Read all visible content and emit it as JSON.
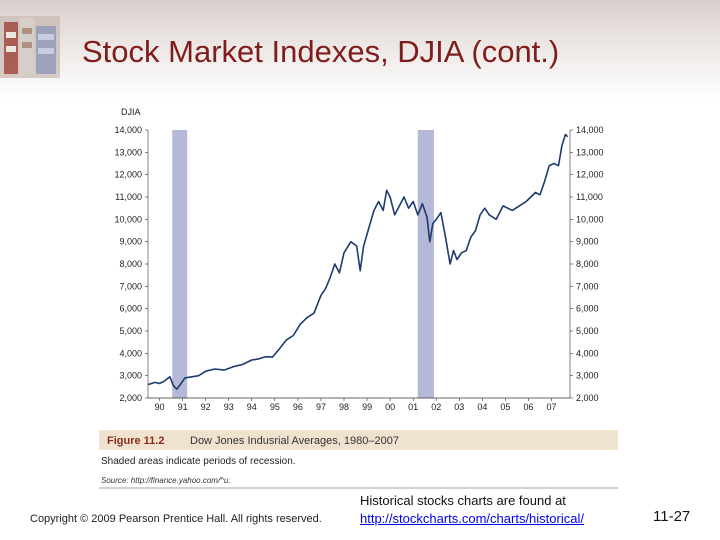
{
  "slide": {
    "title": "Stock Market Indexes, DJIA (cont.)",
    "copyright": "Copyright © 2009 Pearson Prentice Hall. All rights reserved.",
    "historical_text": "Historical stocks charts are found at",
    "historical_link": "http://stockcharts.com/charts/historical/",
    "page_number": "11-27"
  },
  "colors": {
    "title": "#7f1d1d",
    "line": "#1f3a6e",
    "recession": "#b3b9d6",
    "caption_band": "#efe3cf"
  },
  "chart_data": {
    "type": "line",
    "ylabel": "DJIA",
    "ylim": [
      2000,
      14000
    ],
    "yticks": [
      2000,
      3000,
      4000,
      5000,
      6000,
      7000,
      8000,
      9000,
      10000,
      11000,
      12000,
      13000,
      14000
    ],
    "ytick_labels": [
      "2,000",
      "3,000",
      "4,000",
      "5,000",
      "6,000",
      "7,000",
      "8,000",
      "9,000",
      "10,000",
      "11,000",
      "12,000",
      "13,000",
      "14,000"
    ],
    "xlim": [
      1989.5,
      2007.8
    ],
    "xticks": [
      1990,
      1991,
      1992,
      1993,
      1994,
      1995,
      1996,
      1997,
      1998,
      1999,
      2000,
      2001,
      2002,
      2003,
      2004,
      2005,
      2006,
      2007
    ],
    "xtick_labels": [
      "90",
      "91",
      "92",
      "93",
      "94",
      "95",
      "96",
      "97",
      "98",
      "99",
      "00",
      "01",
      "02",
      "03",
      "04",
      "05",
      "06",
      "07"
    ],
    "recessions": [
      {
        "start": 1990.55,
        "end": 1991.2
      },
      {
        "start": 2001.2,
        "end": 2001.9
      }
    ],
    "series": [
      {
        "name": "Dow Jones Industrial Average",
        "x": [
          1989.5,
          1989.8,
          1990.0,
          1990.2,
          1990.45,
          1990.6,
          1990.75,
          1990.9,
          1991.1,
          1991.4,
          1991.7,
          1992.0,
          1992.4,
          1992.8,
          1993.2,
          1993.6,
          1994.0,
          1994.3,
          1994.6,
          1994.9,
          1995.2,
          1995.5,
          1995.8,
          1996.1,
          1996.4,
          1996.7,
          1997.0,
          1997.2,
          1997.4,
          1997.6,
          1997.8,
          1998.0,
          1998.3,
          1998.55,
          1998.7,
          1998.85,
          1999.1,
          1999.3,
          1999.5,
          1999.7,
          1999.85,
          2000.0,
          2000.2,
          2000.4,
          2000.6,
          2000.8,
          2001.0,
          2001.2,
          2001.4,
          2001.6,
          2001.72,
          2001.85,
          2002.0,
          2002.2,
          2002.4,
          2002.6,
          2002.75,
          2002.9,
          2003.1,
          2003.3,
          2003.5,
          2003.7,
          2003.9,
          2004.1,
          2004.3,
          2004.6,
          2004.9,
          2005.1,
          2005.3,
          2005.6,
          2005.9,
          2006.1,
          2006.3,
          2006.5,
          2006.7,
          2006.9,
          2007.1,
          2007.3,
          2007.45,
          2007.6,
          2007.7
        ],
        "values": [
          2600,
          2700,
          2650,
          2750,
          2950,
          2550,
          2400,
          2600,
          2900,
          2950,
          3000,
          3200,
          3300,
          3250,
          3400,
          3500,
          3700,
          3750,
          3850,
          3830,
          4200,
          4600,
          4800,
          5300,
          5600,
          5800,
          6600,
          6900,
          7400,
          8000,
          7600,
          8500,
          9000,
          8800,
          7700,
          8800,
          9700,
          10400,
          10800,
          10400,
          11300,
          11000,
          10200,
          10600,
          11000,
          10500,
          10800,
          10200,
          10700,
          10100,
          9000,
          9800,
          10000,
          10300,
          9200,
          8000,
          8600,
          8200,
          8500,
          8600,
          9200,
          9500,
          10200,
          10500,
          10200,
          10000,
          10600,
          10500,
          10400,
          10600,
          10800,
          11000,
          11200,
          11100,
          11700,
          12400,
          12500,
          12400,
          13300,
          13800,
          13700
        ]
      }
    ],
    "figure_label": "Figure 11.2",
    "figure_title": "Dow Jones Indusrial Averages, 1980–2007",
    "note": "Shaded areas indicate periods of recession.",
    "source": "Source: http://finance.yahoo.com/^u."
  }
}
